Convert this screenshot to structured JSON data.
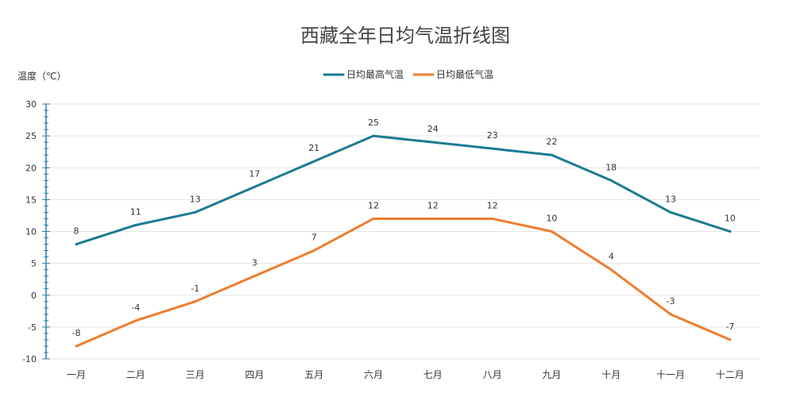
{
  "chart_data": {
    "type": "line",
    "title": "西藏全年日均气温折线图",
    "ylabel": "温度（℃）",
    "xlabel": "",
    "ylim": [
      -10,
      30
    ],
    "yticks": [
      30,
      25,
      20,
      15,
      10,
      5,
      0,
      -5,
      -10
    ],
    "grid": true,
    "legend_position": "top-center",
    "categories": [
      "一月",
      "二月",
      "三月",
      "四月",
      "五月",
      "六月",
      "七月",
      "八月",
      "九月",
      "十月",
      "十一月",
      "十二月"
    ],
    "series": [
      {
        "name": "日均最高气温",
        "color": "#1b7a93",
        "values": [
          8,
          11,
          13,
          17,
          21,
          25,
          24,
          23,
          22,
          18,
          13,
          10
        ]
      },
      {
        "name": "日均最低气温",
        "color": "#ee7d2e",
        "values": [
          -8,
          -4,
          -1,
          3,
          7,
          12,
          12,
          12,
          10,
          4,
          -3,
          -7
        ]
      }
    ],
    "axis_color": "#2a7fa3"
  }
}
